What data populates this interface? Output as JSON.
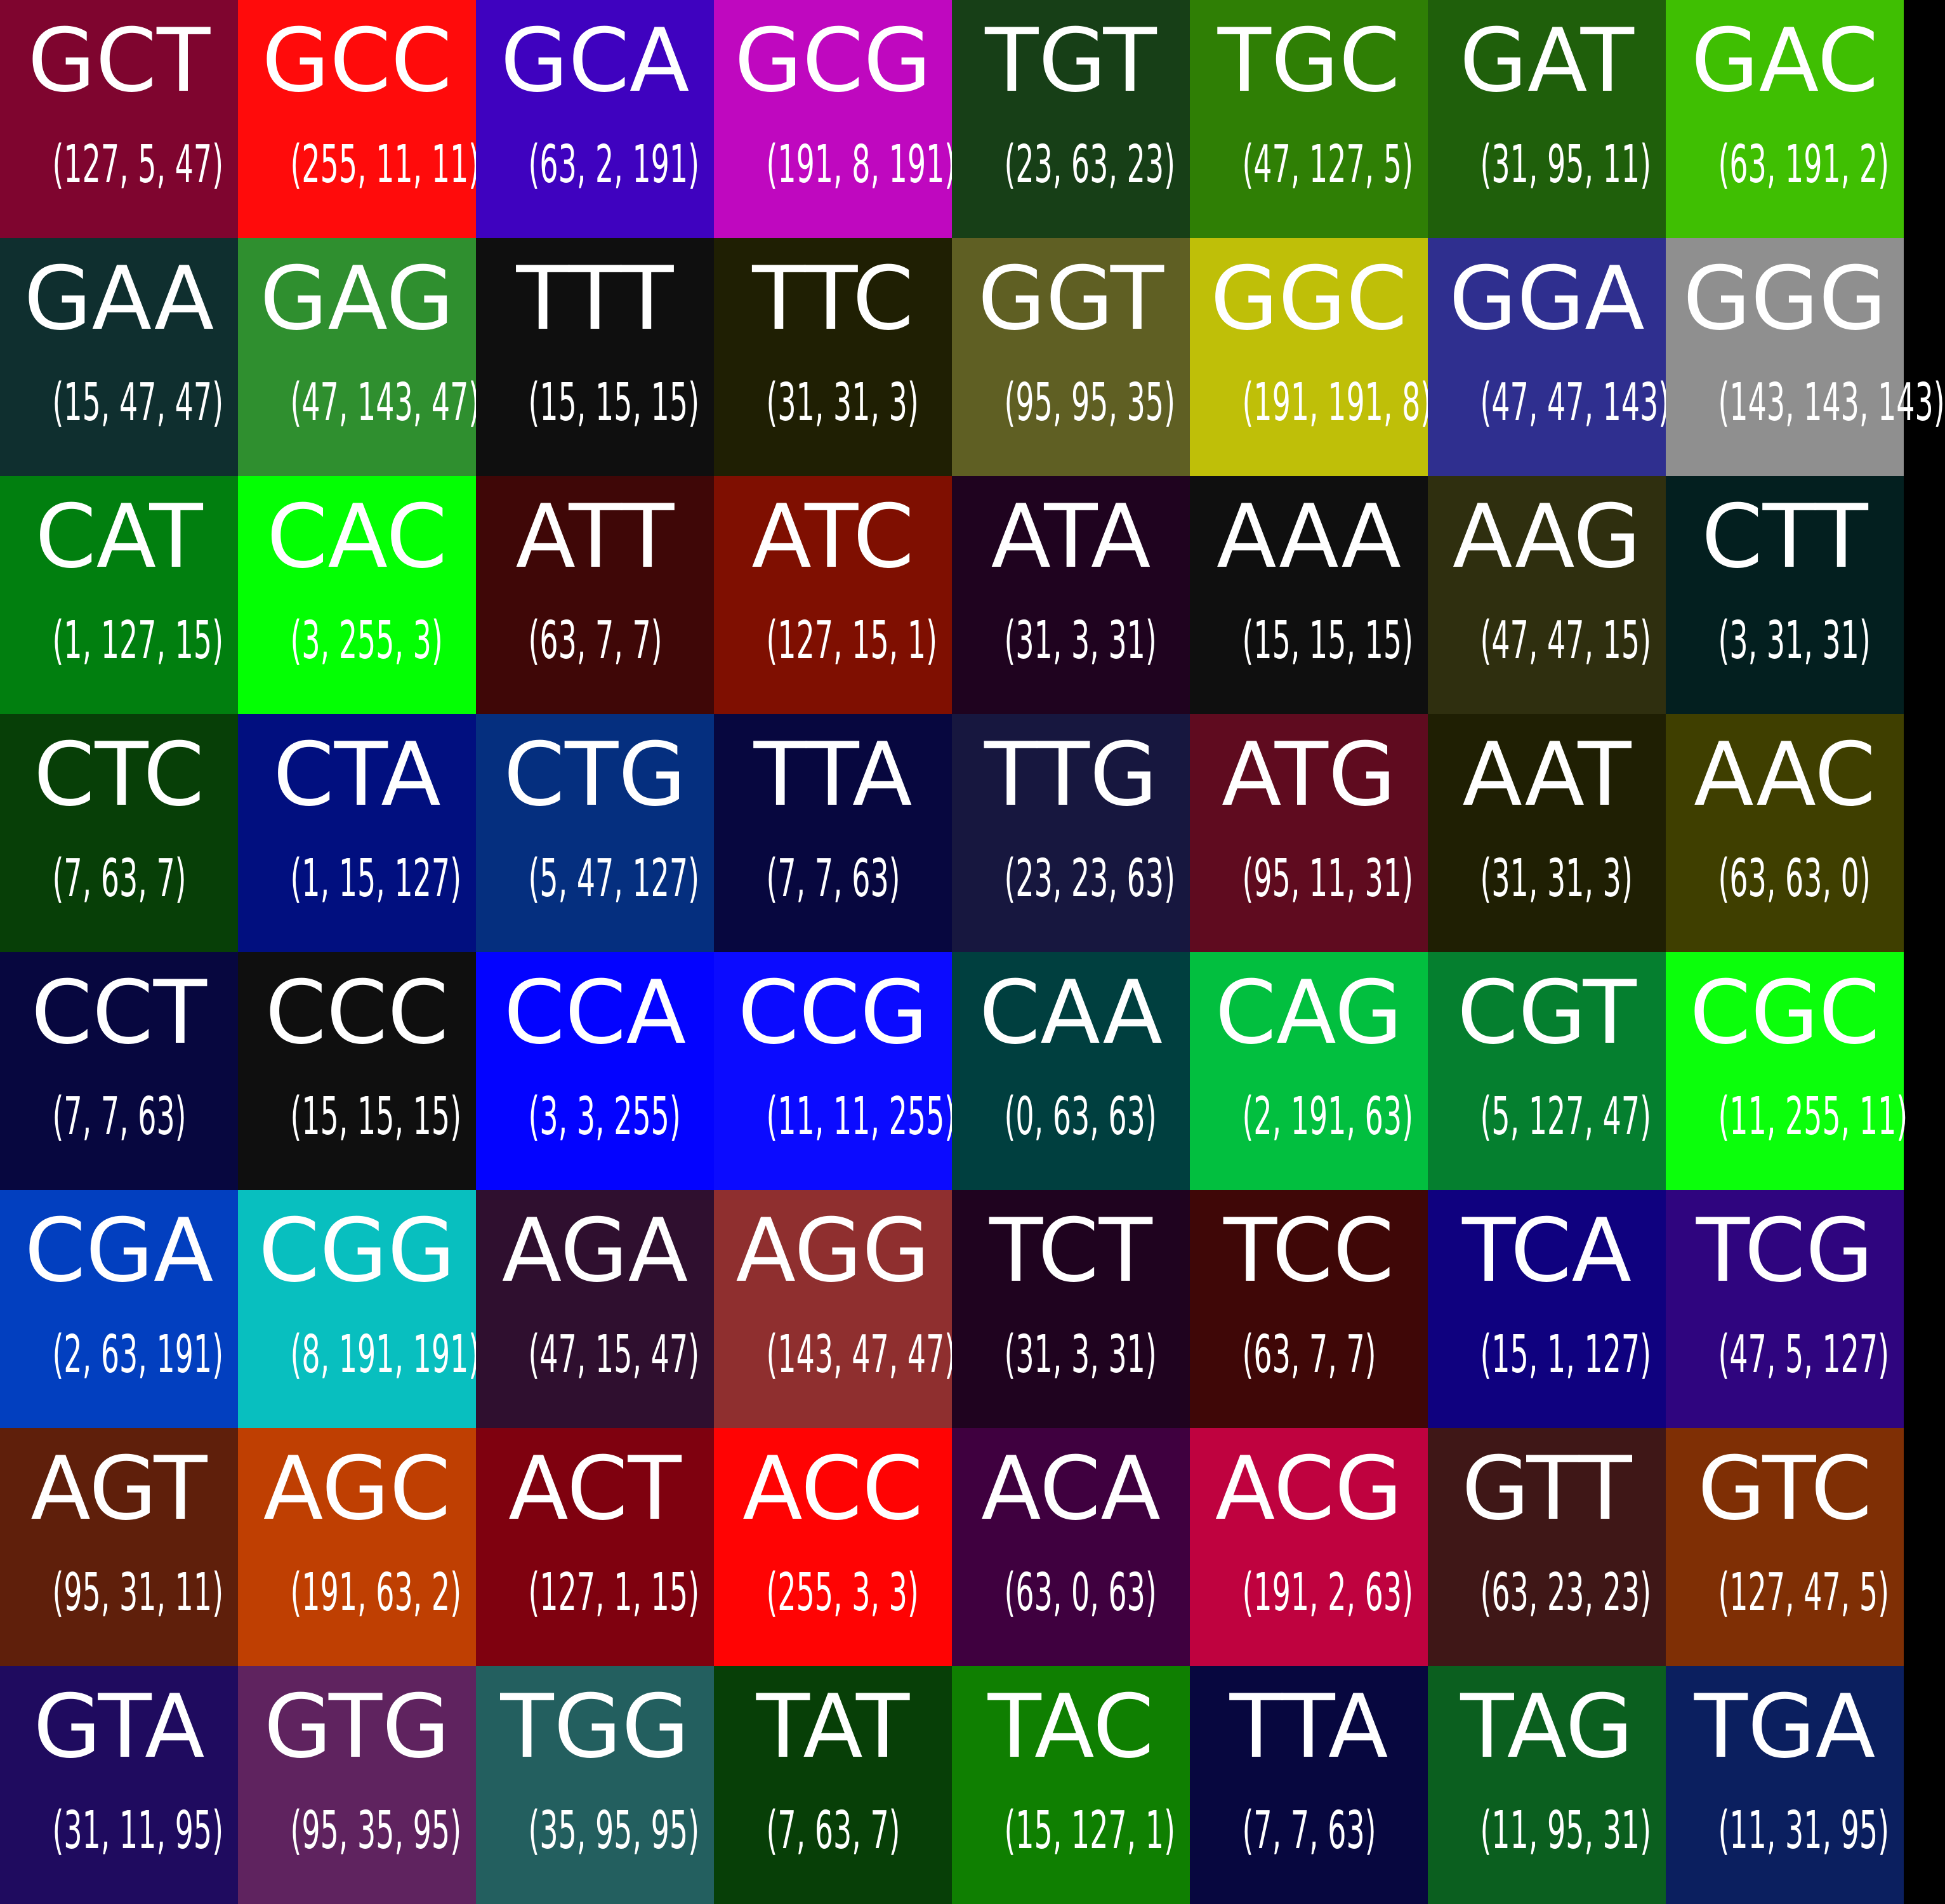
{
  "cells": [
    {
      "codon": "GCT",
      "rgb": "(127, 5, 47)",
      "color": "#7f052f"
    },
    {
      "codon": "GCC",
      "rgb": "(255, 11, 11)",
      "color": "#ff0b0b"
    },
    {
      "codon": "GCA",
      "rgb": "(63, 2, 191)",
      "color": "#3f02bf"
    },
    {
      "codon": "GCG",
      "rgb": "(191, 8, 191)",
      "color": "#bf08bf"
    },
    {
      "codon": "TGT",
      "rgb": "(23, 63, 23)",
      "color": "#173f17"
    },
    {
      "codon": "TGC",
      "rgb": "(47, 127, 5)",
      "color": "#2f7f05"
    },
    {
      "codon": "GAT",
      "rgb": "(31, 95, 11)",
      "color": "#1f5f0b"
    },
    {
      "codon": "GAC",
      "rgb": "(63, 191, 2)",
      "color": "#3fbf02"
    },
    {
      "codon": "GAA",
      "rgb": "(15, 47, 47)",
      "color": "#0f2f2f"
    },
    {
      "codon": "GAG",
      "rgb": "(47, 143, 47)",
      "color": "#2f8f2f"
    },
    {
      "codon": "TTT",
      "rgb": "(15, 15, 15)",
      "color": "#0f0f0f"
    },
    {
      "codon": "TTC",
      "rgb": "(31, 31, 3)",
      "color": "#1f1f03"
    },
    {
      "codon": "GGT",
      "rgb": "(95, 95, 35)",
      "color": "#5f5f23"
    },
    {
      "codon": "GGC",
      "rgb": "(191, 191, 8)",
      "color": "#bfbf08"
    },
    {
      "codon": "GGA",
      "rgb": "(47, 47, 143)",
      "color": "#2f2f8f"
    },
    {
      "codon": "GGG",
      "rgb": "(143, 143, 143)",
      "color": "#8f8f8f"
    },
    {
      "codon": "CAT",
      "rgb": "(1, 127, 15)",
      "color": "#017f0f"
    },
    {
      "codon": "CAC",
      "rgb": "(3, 255, 3)",
      "color": "#03ff03"
    },
    {
      "codon": "ATT",
      "rgb": "(63, 7, 7)",
      "color": "#3f0707"
    },
    {
      "codon": "ATC",
      "rgb": "(127, 15, 1)",
      "color": "#7f0f01"
    },
    {
      "codon": "ATA",
      "rgb": "(31, 3, 31)",
      "color": "#1f031f"
    },
    {
      "codon": "AAA",
      "rgb": "(15, 15, 15)",
      "color": "#0f0f0f"
    },
    {
      "codon": "AAG",
      "rgb": "(47, 47, 15)",
      "color": "#2f2f0f"
    },
    {
      "codon": "CTT",
      "rgb": "(3, 31, 31)",
      "color": "#031f1f"
    },
    {
      "codon": "CTC",
      "rgb": "(7, 63, 7)",
      "color": "#073f07"
    },
    {
      "codon": "CTA",
      "rgb": "(1, 15, 127)",
      "color": "#010f7f"
    },
    {
      "codon": "CTG",
      "rgb": "(5, 47, 127)",
      "color": "#052f7f"
    },
    {
      "codon": "TTA",
      "rgb": "(7, 7, 63)",
      "color": "#07073f"
    },
    {
      "codon": "TTG",
      "rgb": "(23, 23, 63)",
      "color": "#17173f"
    },
    {
      "codon": "ATG",
      "rgb": "(95, 11, 31)",
      "color": "#5f0b1f"
    },
    {
      "codon": "AAT",
      "rgb": "(31, 31, 3)",
      "color": "#1f1f03"
    },
    {
      "codon": "AAC",
      "rgb": "(63, 63, 0)",
      "color": "#3f3f00"
    },
    {
      "codon": "CCT",
      "rgb": "(7, 7, 63)",
      "color": "#07073f"
    },
    {
      "codon": "CCC",
      "rgb": "(15, 15, 15)",
      "color": "#0f0f0f"
    },
    {
      "codon": "CCA",
      "rgb": "(3, 3, 255)",
      "color": "#0303ff"
    },
    {
      "codon": "CCG",
      "rgb": "(11, 11, 255)",
      "color": "#0b0bff"
    },
    {
      "codon": "CAA",
      "rgb": "(0, 63, 63)",
      "color": "#003f3f"
    },
    {
      "codon": "CAG",
      "rgb": "(2, 191, 63)",
      "color": "#02bf3f"
    },
    {
      "codon": "CGT",
      "rgb": "(5, 127, 47)",
      "color": "#057f2f"
    },
    {
      "codon": "CGC",
      "rgb": "(11, 255, 11)",
      "color": "#0bff0b"
    },
    {
      "codon": "CGA",
      "rgb": "(2, 63, 191)",
      "color": "#023fbf"
    },
    {
      "codon": "CGG",
      "rgb": "(8, 191, 191)",
      "color": "#08bfbf"
    },
    {
      "codon": "AGA",
      "rgb": "(47, 15, 47)",
      "color": "#2f0f2f"
    },
    {
      "codon": "AGG",
      "rgb": "(143, 47, 47)",
      "color": "#8f2f2f"
    },
    {
      "codon": "TCT",
      "rgb": "(31, 3, 31)",
      "color": "#1f031f"
    },
    {
      "codon": "TCC",
      "rgb": "(63, 7, 7)",
      "color": "#3f0707"
    },
    {
      "codon": "TCA",
      "rgb": "(15, 1, 127)",
      "color": "#0f017f"
    },
    {
      "codon": "TCG",
      "rgb": "(47, 5, 127)",
      "color": "#2f057f"
    },
    {
      "codon": "AGT",
      "rgb": "(95, 31, 11)",
      "color": "#5f1f0b"
    },
    {
      "codon": "AGC",
      "rgb": "(191, 63, 2)",
      "color": "#bf3f02"
    },
    {
      "codon": "ACT",
      "rgb": "(127, 1, 15)",
      "color": "#7f010f"
    },
    {
      "codon": "ACC",
      "rgb": "(255, 3, 3)",
      "color": "#ff0303"
    },
    {
      "codon": "ACA",
      "rgb": "(63, 0, 63)",
      "color": "#3f003f"
    },
    {
      "codon": "ACG",
      "rgb": "(191, 2, 63)",
      "color": "#bf023f"
    },
    {
      "codon": "GTT",
      "rgb": "(63, 23, 23)",
      "color": "#3f1717"
    },
    {
      "codon": "GTC",
      "rgb": "(127, 47, 5)",
      "color": "#7f2f05"
    },
    {
      "codon": "GTA",
      "rgb": "(31, 11, 95)",
      "color": "#1f0b5f"
    },
    {
      "codon": "GTG",
      "rgb": "(95, 35, 95)",
      "color": "#5f235f"
    },
    {
      "codon": "TGG",
      "rgb": "(35, 95, 95)",
      "color": "#235f5f"
    },
    {
      "codon": "TAT",
      "rgb": "(7, 63, 7)",
      "color": "#073f07"
    },
    {
      "codon": "TAC",
      "rgb": "(15, 127, 1)",
      "color": "#0f7f01"
    },
    {
      "codon": "TTA",
      "rgb": "(7, 7, 63)",
      "color": "#07073f"
    },
    {
      "codon": "TAG",
      "rgb": "(11, 95, 31)",
      "color": "#0b5f1f"
    },
    {
      "codon": "TGA",
      "rgb": "(11, 31, 95)",
      "color": "#0b1f5f"
    }
  ]
}
